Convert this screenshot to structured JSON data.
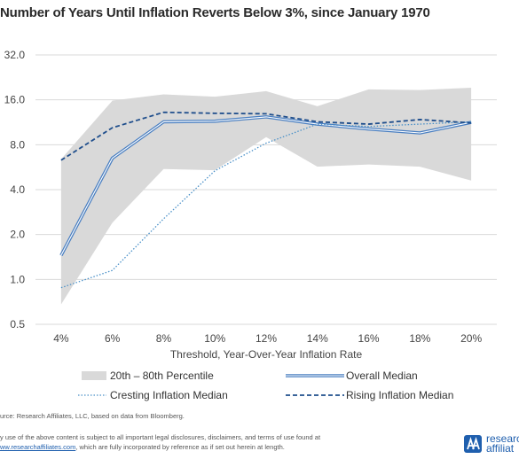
{
  "chart_data": {
    "type": "line",
    "title": "Number of Years Until Inflation Reverts Below 3%, since January 1970",
    "xlabel": "Threshold,  Year-Over-Year  Inflation  Rate",
    "ylabel": "",
    "y_scale": "log2",
    "ylim": [
      0.5,
      32.0
    ],
    "y_ticks": [
      "0.5",
      "1.0",
      "2.0",
      "4.0",
      "8.0",
      "16.0",
      "32.0"
    ],
    "categories": [
      "4%",
      "6%",
      "8%",
      "10%",
      "12%",
      "14%",
      "16%",
      "18%",
      "20%"
    ],
    "band": {
      "name": "20th – 80th Percentile",
      "low": [
        0.68,
        2.4,
        5.5,
        5.4,
        9.0,
        5.7,
        5.9,
        5.7,
        4.6
      ],
      "high": [
        6.4,
        15.8,
        17.4,
        16.8,
        18.3,
        14.5,
        18.8,
        18.6,
        19.3
      ]
    },
    "series": [
      {
        "name": "Overall Median",
        "style": "double",
        "color": "#4a7fc1",
        "values": [
          1.45,
          6.5,
          11.4,
          11.5,
          12.3,
          11.0,
          10.2,
          9.6,
          11.3
        ]
      },
      {
        "name": "Cresting Inflation Median",
        "style": "dotted",
        "color": "#4a90c8",
        "values": [
          0.88,
          1.15,
          2.55,
          5.35,
          8.2,
          11.0,
          10.6,
          11.0,
          11.4
        ]
      },
      {
        "name": "Rising Inflation Median",
        "style": "dashed",
        "color": "#1f4e8c",
        "values": [
          6.3,
          10.4,
          13.2,
          13.0,
          12.9,
          11.4,
          11.0,
          11.8,
          11.2
        ]
      }
    ],
    "grid": "horizontal",
    "legend_position": "bottom"
  },
  "source": "urce: Research Affiliates, LLC, based on data from Bloomberg.",
  "disclaimer": {
    "line1": "y use of the above content is subject to all important legal disclosures, disclaimers, and terms of use found at",
    "link": "ww.researchaffiliates.com",
    "line2_rest": ", which are fully incorporated by reference as if set out herein at length."
  },
  "logo": {
    "line1": "researc",
    "line2": "affiliat",
    "color": "#1f5fae"
  }
}
